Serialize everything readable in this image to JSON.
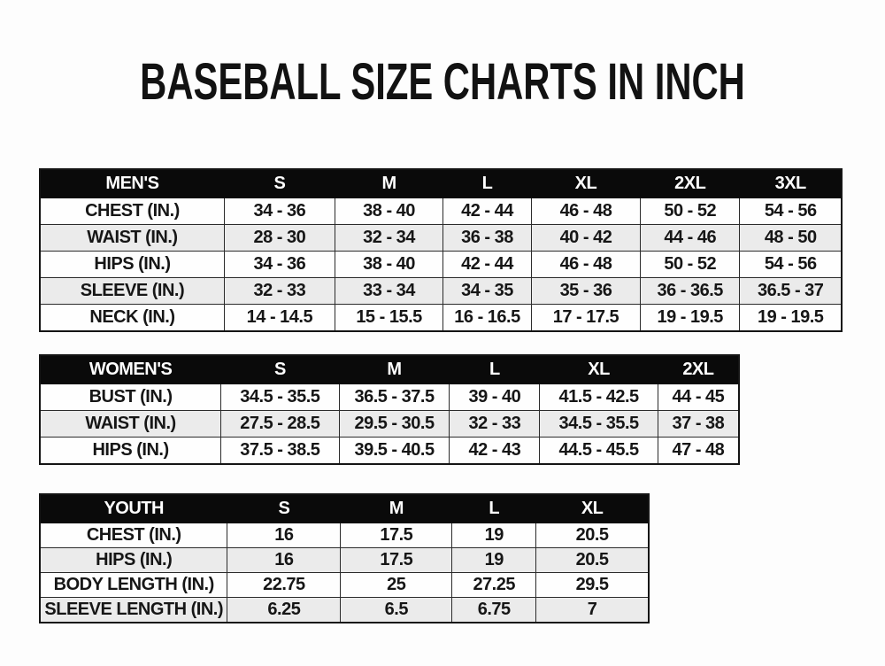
{
  "title": "BASEBALL SIZE CHARTS IN INCH",
  "colors": {
    "page_background": "#fdfdfd",
    "header_background": "#0a0a0a",
    "header_text": "#ffffff",
    "row_alternate_background": "#ebebeb",
    "border": "#2b2b2b",
    "text": "#161616"
  },
  "chart_data": [
    {
      "type": "table",
      "name": "mens",
      "header": [
        "MEN'S",
        "S",
        "M",
        "L",
        "XL",
        "2XL",
        "3XL"
      ],
      "rows": [
        {
          "label": "CHEST (IN.)",
          "values": [
            "34 - 36",
            "38 - 40",
            "42 - 44",
            "46 - 48",
            "50 - 52",
            "54 - 56"
          ]
        },
        {
          "label": "WAIST (IN.)",
          "values": [
            "28 - 30",
            "32 - 34",
            "36 - 38",
            "40 - 42",
            "44 - 46",
            "48 - 50"
          ]
        },
        {
          "label": "HIPS (IN.)",
          "values": [
            "34 - 36",
            "38 - 40",
            "42 - 44",
            "46 - 48",
            "50 - 52",
            "54 - 56"
          ]
        },
        {
          "label": "SLEEVE (IN.)",
          "values": [
            "32 - 33",
            "33 - 34",
            "34 - 35",
            "35 - 36",
            "36 - 36.5",
            "36.5 - 37"
          ]
        },
        {
          "label": "NECK (IN.)",
          "values": [
            "14 - 14.5",
            "15 - 15.5",
            "16 - 16.5",
            "17 - 17.5",
            "19 - 19.5",
            "19 - 19.5"
          ]
        }
      ]
    },
    {
      "type": "table",
      "name": "womens",
      "header": [
        "WOMEN'S",
        "S",
        "M",
        "L",
        "XL",
        "2XL"
      ],
      "rows": [
        {
          "label": "BUST (IN.)",
          "values": [
            "34.5 - 35.5",
            "36.5 - 37.5",
            "39 - 40",
            "41.5 - 42.5",
            "44 - 45"
          ]
        },
        {
          "label": "WAIST (IN.)",
          "values": [
            "27.5 - 28.5",
            "29.5 - 30.5",
            "32 - 33",
            "34.5 - 35.5",
            "37 - 38"
          ]
        },
        {
          "label": "HIPS (IN.)",
          "values": [
            "37.5 - 38.5",
            "39.5 - 40.5",
            "42 - 43",
            "44.5 - 45.5",
            "47 - 48"
          ]
        }
      ]
    },
    {
      "type": "table",
      "name": "youth",
      "header": [
        "YOUTH",
        "S",
        "M",
        "L",
        "XL"
      ],
      "rows": [
        {
          "label": "CHEST (IN.)",
          "values": [
            "16",
            "17.5",
            "19",
            "20.5"
          ]
        },
        {
          "label": "HIPS (IN.)",
          "values": [
            "16",
            "17.5",
            "19",
            "20.5"
          ]
        },
        {
          "label": "BODY LENGTH (IN.)",
          "values": [
            "22.75",
            "25",
            "27.25",
            "29.5"
          ]
        },
        {
          "label": "SLEEVE LENGTH (IN.)",
          "values": [
            "6.25",
            "6.5",
            "6.75",
            "7"
          ]
        }
      ]
    }
  ]
}
